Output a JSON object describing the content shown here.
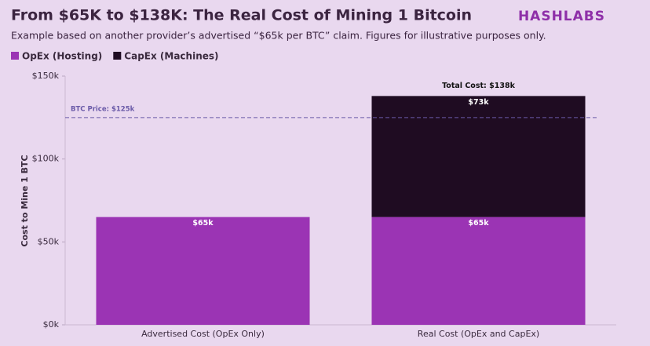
{
  "chart_data": {
    "type": "stacked-bar",
    "title": "From $65K to $138K: The Real Cost of Mining 1 Bitcoin",
    "subtitle": "Example based on another provider’s advertised “$65k per BTC” claim. Figures for illustrative purposes only.",
    "brand": "HASHLABS",
    "y_label": "Cost to Mine 1 BTC",
    "categories": [
      "Advertised Cost (OpEx Only)",
      "Real Cost (OpEx and CapEx)"
    ],
    "series": [
      {
        "name": "OpEx (Hosting)",
        "color": "#9b34b4",
        "values": [
          65000,
          65000
        ],
        "value_labels": [
          "$65k",
          "$65k"
        ]
      },
      {
        "name": "CapEx (Machines)",
        "color": "#1f0c22",
        "values": [
          null,
          73000
        ],
        "value_labels": [
          null,
          "$73k"
        ]
      }
    ],
    "total_labels": [
      null,
      "Total Cost: $138k"
    ],
    "reference_line": {
      "value": 125000,
      "label": "BTC Price: $125k",
      "color": "#6a5aa8"
    },
    "ylim": [
      0,
      150000
    ],
    "yticks": [
      {
        "value": 0,
        "label": "$0k"
      },
      {
        "value": 50000,
        "label": "$50k"
      },
      {
        "value": 100000,
        "label": "$100k"
      },
      {
        "value": 150000,
        "label": "$150k"
      }
    ],
    "legend": "top-left"
  }
}
